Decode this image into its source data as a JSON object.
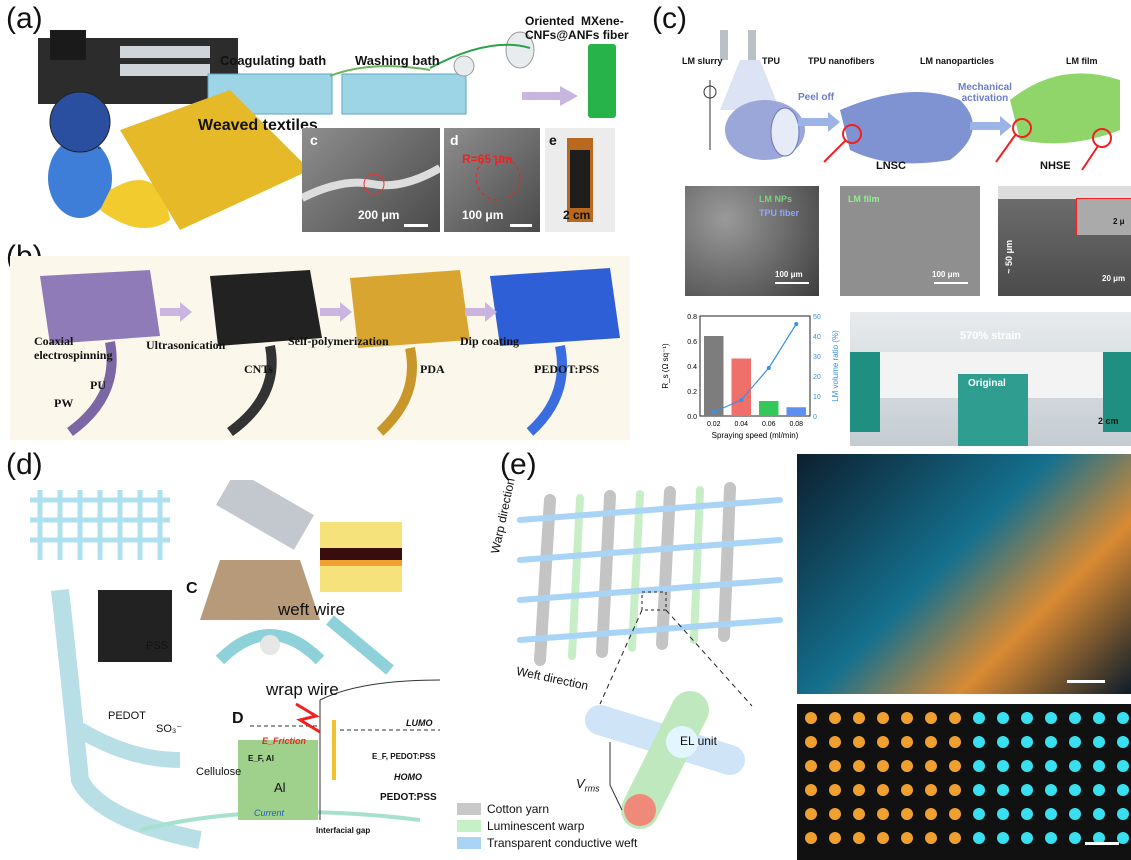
{
  "panels": {
    "a": {
      "letter": "(a)",
      "coagulating_bath": "Coagulating bath",
      "washing_bath": "Washing bath",
      "fiber_label": "Oriented  MXene-\nCNFs@ANFs fiber",
      "weaved_textiles": "Weaved textiles",
      "sub_c": "c",
      "sub_d": "d",
      "sub_e": "e",
      "scale_c": "200 μm",
      "scale_d": "100 μm",
      "radius_d": "R=65 μm",
      "scale_e": "2 cm"
    },
    "b": {
      "letter": "(b)",
      "coaxial": "Coaxial\nelectrospinning",
      "pu": "PU",
      "pw": "PW",
      "ultrasonication": "Ultrasonication",
      "cnts": "CNTs",
      "self_poly": "Self-polymerization",
      "pda": "PDA",
      "dip_coating": "Dip coating",
      "pedot": "PEDOT:PSS"
    },
    "c": {
      "letter": "(c)",
      "lm_slurry": "LM slurry",
      "tpu": "TPU",
      "tpu_nanofibers": "TPU nanofibers",
      "lm_nanoparticles": "LM nanoparticles",
      "lm_film_top": "LM film",
      "peel_off": "Peel off",
      "mech_act": "Mechanical\nactivation",
      "lnsc": "LNSC",
      "nhse": "NHSE",
      "sem1_a": "LM NPs",
      "sem1_b": "TPU fiber",
      "sem1_scale": "100 μm",
      "sem2_a": "LM film",
      "sem2_scale": "100 μm",
      "sem3_thick": "~ 50 μm",
      "sem3_scale": "20 μm",
      "sem3_inset": "2 μ",
      "strain": "570% strain",
      "original": "Original",
      "photo_scale": "2 cm"
    },
    "d": {
      "letter": "(d)",
      "pss": "PSS",
      "pedot": "PEDOT",
      "so3": "SO₃⁻",
      "cellulose": "Cellulose",
      "c_label": "C",
      "weft_wire": "weft wire",
      "wrap_wire": "wrap wire",
      "d_label": "D",
      "lumo": "LUMO",
      "homo": "HOMO",
      "e_friction": "E_Friction",
      "ef_al": "E_F, Al",
      "ef_pedot": "E_F, PEDOT:PSS",
      "al": "Al",
      "pedot_pss": "PEDOT:PSS",
      "current": "Current",
      "interfacial_gap": "Interfacial gap"
    },
    "e": {
      "letter": "(e)",
      "warp_direction": "Warp direction",
      "weft_direction": "Weft direction",
      "el_unit": "EL unit",
      "vrms": "V",
      "vrms_sub": "rms",
      "legend": [
        {
          "label": "Cotton yarn",
          "color": "#c8c8c8"
        },
        {
          "label": "Luminescent warp",
          "color": "#c6f0c6"
        },
        {
          "label": "Transparent conductive weft",
          "color": "#a9d4f5"
        }
      ]
    }
  },
  "chart_data": {
    "type": "bar",
    "categories": [
      "0.02",
      "0.04",
      "0.06",
      "0.08"
    ],
    "series": [
      {
        "values": [
          0.64,
          0.46,
          0.12,
          0.07
        ],
        "colors": [
          "#7d7d7d",
          "#ef6f6a",
          "#34c759",
          "#5b8ff0"
        ]
      }
    ],
    "line": {
      "x": [
        0.02,
        0.04,
        0.06,
        0.08
      ],
      "y": [
        2,
        8,
        24,
        46
      ],
      "color": "#3a8fe8"
    },
    "xlabel": "Spraying speed (ml/min)",
    "ylabel": "R_s (Ω sq⁻¹)",
    "ylabel_right": "LM volume ratio (%)",
    "ylim": [
      0,
      0.8
    ],
    "yticks": [
      "0.0",
      "0.2",
      "0.4",
      "0.6",
      "0.8"
    ],
    "y2lim": [
      0,
      50
    ],
    "y2ticks": [
      "0",
      "10",
      "20",
      "30",
      "40",
      "50"
    ]
  }
}
